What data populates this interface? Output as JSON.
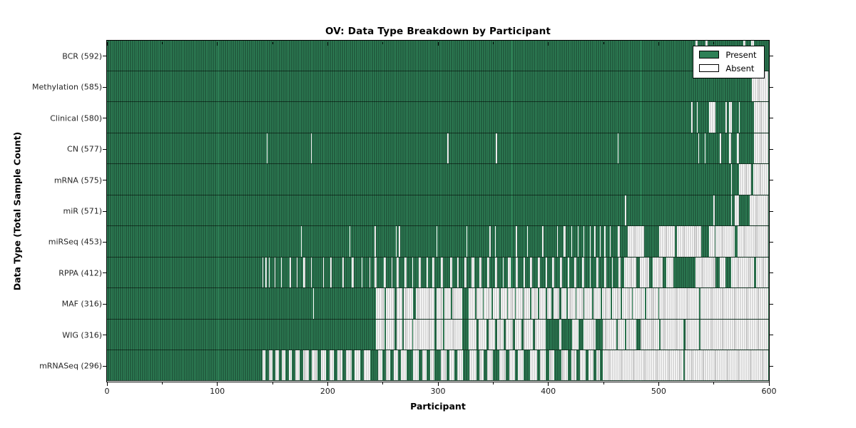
{
  "chart_data": {
    "type": "heatmap",
    "title": "OV: Data Type Breakdown by Participant",
    "xlabel": "Participant",
    "ylabel": "Data Type (Total Sample Count)",
    "xlim": [
      0,
      600
    ],
    "xticks": [
      0,
      100,
      200,
      300,
      400,
      500,
      600
    ],
    "xticks_minor": [
      50,
      150,
      250,
      350,
      450,
      550
    ],
    "grid": false,
    "legend": {
      "position": "upper right",
      "entries": [
        {
          "label": "Present",
          "state": "present"
        },
        {
          "label": "Absent",
          "state": "absent"
        }
      ]
    },
    "colors": {
      "present": "#2e8056",
      "present_edge": "#173d29",
      "absent": "#ffffff",
      "absent_edge": "#b6b6b6",
      "axis": "#000000",
      "background": "#ffffff"
    },
    "rows": [
      {
        "name": "BCR",
        "label": "BCR (592)",
        "total": 592,
        "absent": [
          [
            534,
            536
          ],
          [
            543,
            545
          ],
          [
            577,
            579
          ],
          [
            584,
            587
          ]
        ],
        "present_patches": []
      },
      {
        "name": "Methylation",
        "label": "Methylation (585)",
        "total": 585,
        "absent": [
          [
            585,
            600
          ]
        ],
        "present_patches": []
      },
      {
        "name": "Clinical",
        "label": "Clinical (580)",
        "total": 580,
        "absent": [
          [
            530,
            531
          ],
          [
            535,
            536
          ],
          [
            546,
            552
          ],
          [
            561,
            562
          ],
          [
            564,
            567
          ],
          [
            573,
            574
          ],
          [
            587,
            600
          ]
        ],
        "present_patches": []
      },
      {
        "name": "CN",
        "label": "CN (577)",
        "total": 577,
        "absent": [
          [
            145,
            146
          ],
          [
            185,
            186
          ],
          [
            309,
            310
          ],
          [
            353,
            354
          ],
          [
            463,
            464
          ],
          [
            536,
            537
          ],
          [
            542,
            543
          ],
          [
            556,
            557
          ],
          [
            564,
            566
          ],
          [
            571,
            573
          ],
          [
            587,
            600
          ]
        ],
        "present_patches": []
      },
      {
        "name": "mRNA",
        "label": "mRNA (575)",
        "total": 575,
        "absent": [
          [
            566,
            567
          ],
          [
            573,
            584
          ],
          [
            586,
            600
          ]
        ],
        "present_patches": []
      },
      {
        "name": "miR",
        "label": "miR (571)",
        "total": 571,
        "absent": [
          [
            470,
            471
          ],
          [
            550,
            551
          ],
          [
            566,
            567
          ],
          [
            569,
            573
          ],
          [
            583,
            600
          ]
        ],
        "present_patches": []
      },
      {
        "name": "miRSeq",
        "label": "miRSeq (453)",
        "total": 453,
        "absent": [
          [
            176,
            177
          ],
          [
            220,
            221
          ],
          [
            243,
            244
          ],
          [
            262,
            263
          ],
          [
            265,
            266
          ],
          [
            299,
            300
          ],
          [
            326,
            327
          ],
          [
            347,
            348
          ],
          [
            352,
            353
          ],
          [
            371,
            372
          ],
          [
            381,
            382
          ],
          [
            395,
            396
          ],
          [
            408,
            409
          ],
          [
            414,
            416
          ],
          [
            421,
            422
          ],
          [
            427,
            428
          ],
          [
            432,
            433
          ],
          [
            438,
            439
          ],
          [
            442,
            443
          ],
          [
            447,
            448
          ],
          [
            451,
            452
          ],
          [
            456,
            457
          ],
          [
            463,
            465
          ],
          [
            472,
            487
          ],
          [
            501,
            515
          ],
          [
            517,
            539
          ],
          [
            546,
            551
          ],
          [
            552,
            569
          ],
          [
            572,
            600
          ]
        ],
        "present_patches": []
      },
      {
        "name": "RPPA",
        "label": "RPPA (412)",
        "total": 412,
        "absent": [
          [
            141,
            142
          ],
          [
            144,
            145
          ],
          [
            147,
            148
          ],
          [
            152,
            153
          ],
          [
            158,
            159
          ],
          [
            166,
            167
          ],
          [
            172,
            173
          ],
          [
            178,
            180
          ],
          [
            185,
            186
          ],
          [
            196,
            197
          ],
          [
            203,
            204
          ],
          [
            214,
            215
          ],
          [
            222,
            224
          ],
          [
            231,
            232
          ],
          [
            238,
            239
          ],
          [
            243,
            245
          ],
          [
            251,
            253
          ],
          [
            258,
            259
          ],
          [
            263,
            265
          ],
          [
            270,
            272
          ],
          [
            277,
            278
          ],
          [
            283,
            285
          ],
          [
            290,
            291
          ],
          [
            295,
            297
          ],
          [
            303,
            305
          ],
          [
            311,
            313
          ],
          [
            318,
            319
          ],
          [
            324,
            326
          ],
          [
            331,
            333
          ],
          [
            338,
            340
          ],
          [
            345,
            347
          ],
          [
            352,
            354
          ],
          [
            359,
            360
          ],
          [
            364,
            366
          ],
          [
            371,
            373
          ],
          [
            378,
            379
          ],
          [
            384,
            386
          ],
          [
            391,
            393
          ],
          [
            398,
            399
          ],
          [
            404,
            406
          ],
          [
            411,
            413
          ],
          [
            418,
            419
          ],
          [
            424,
            426
          ],
          [
            431,
            433
          ],
          [
            438,
            439
          ],
          [
            444,
            446
          ],
          [
            451,
            453
          ],
          [
            458,
            459
          ],
          [
            464,
            466
          ],
          [
            469,
            480
          ],
          [
            483,
            492
          ],
          [
            495,
            504
          ],
          [
            507,
            514
          ],
          [
            534,
            552
          ],
          [
            556,
            561
          ],
          [
            566,
            587
          ],
          [
            589,
            600
          ]
        ],
        "present_patches": []
      },
      {
        "name": "MAF",
        "label": "MAF (316)",
        "total": 316,
        "absent": [
          [
            187,
            188
          ],
          [
            244,
            600
          ]
        ],
        "present_patches": [
          [
            252,
            253
          ],
          [
            261,
            263
          ],
          [
            268,
            269
          ],
          [
            278,
            280
          ],
          [
            297,
            299
          ],
          [
            305,
            306
          ],
          [
            312,
            313
          ],
          [
            322,
            328
          ],
          [
            334,
            335
          ],
          [
            341,
            342
          ],
          [
            349,
            350
          ],
          [
            356,
            357
          ],
          [
            363,
            364
          ],
          [
            370,
            371
          ],
          [
            377,
            378
          ],
          [
            384,
            385
          ],
          [
            391,
            392
          ],
          [
            398,
            399
          ],
          [
            403,
            405
          ],
          [
            410,
            412
          ],
          [
            417,
            418
          ],
          [
            425,
            426
          ],
          [
            432,
            433
          ],
          [
            440,
            441
          ],
          [
            448,
            449
          ],
          [
            457,
            458
          ],
          [
            466,
            467
          ],
          [
            476,
            477
          ],
          [
            488,
            489
          ],
          [
            500,
            501
          ],
          [
            537,
            538
          ]
        ]
      },
      {
        "name": "WIG",
        "label": "WIG (316)",
        "total": 316,
        "absent": [
          [
            244,
            600
          ]
        ],
        "present_patches": [
          [
            252,
            253
          ],
          [
            261,
            263
          ],
          [
            268,
            269
          ],
          [
            277,
            278
          ],
          [
            297,
            299
          ],
          [
            305,
            306
          ],
          [
            322,
            328
          ],
          [
            335,
            337
          ],
          [
            344,
            346
          ],
          [
            352,
            354
          ],
          [
            360,
            362
          ],
          [
            368,
            370
          ],
          [
            376,
            378
          ],
          [
            386,
            388
          ],
          [
            398,
            410
          ],
          [
            412,
            422
          ],
          [
            428,
            432
          ],
          [
            443,
            450
          ],
          [
            462,
            463
          ],
          [
            470,
            471
          ],
          [
            480,
            484
          ],
          [
            501,
            502
          ],
          [
            523,
            525
          ],
          [
            537,
            538
          ]
        ]
      },
      {
        "name": "mRNASeq",
        "label": "mRNASeq (296)",
        "total": 296,
        "absent": [
          [
            141,
            600
          ]
        ],
        "present_patches": [
          [
            144,
            147
          ],
          [
            150,
            153
          ],
          [
            156,
            159
          ],
          [
            162,
            165
          ],
          [
            168,
            171
          ],
          [
            175,
            178
          ],
          [
            183,
            186
          ],
          [
            191,
            194
          ],
          [
            199,
            202
          ],
          [
            206,
            209
          ],
          [
            214,
            217
          ],
          [
            222,
            225
          ],
          [
            230,
            233
          ],
          [
            239,
            246
          ],
          [
            250,
            253
          ],
          [
            257,
            260
          ],
          [
            264,
            267
          ],
          [
            272,
            278
          ],
          [
            283,
            286
          ],
          [
            290,
            293
          ],
          [
            297,
            303
          ],
          [
            308,
            311
          ],
          [
            315,
            318
          ],
          [
            323,
            329
          ],
          [
            335,
            338
          ],
          [
            342,
            345
          ],
          [
            350,
            356
          ],
          [
            362,
            365
          ],
          [
            370,
            373
          ],
          [
            378,
            384
          ],
          [
            390,
            393
          ],
          [
            398,
            401
          ],
          [
            406,
            412
          ],
          [
            418,
            421
          ],
          [
            426,
            429
          ],
          [
            434,
            437
          ],
          [
            441,
            444
          ],
          [
            447,
            450
          ],
          [
            523,
            524
          ]
        ]
      }
    ]
  }
}
